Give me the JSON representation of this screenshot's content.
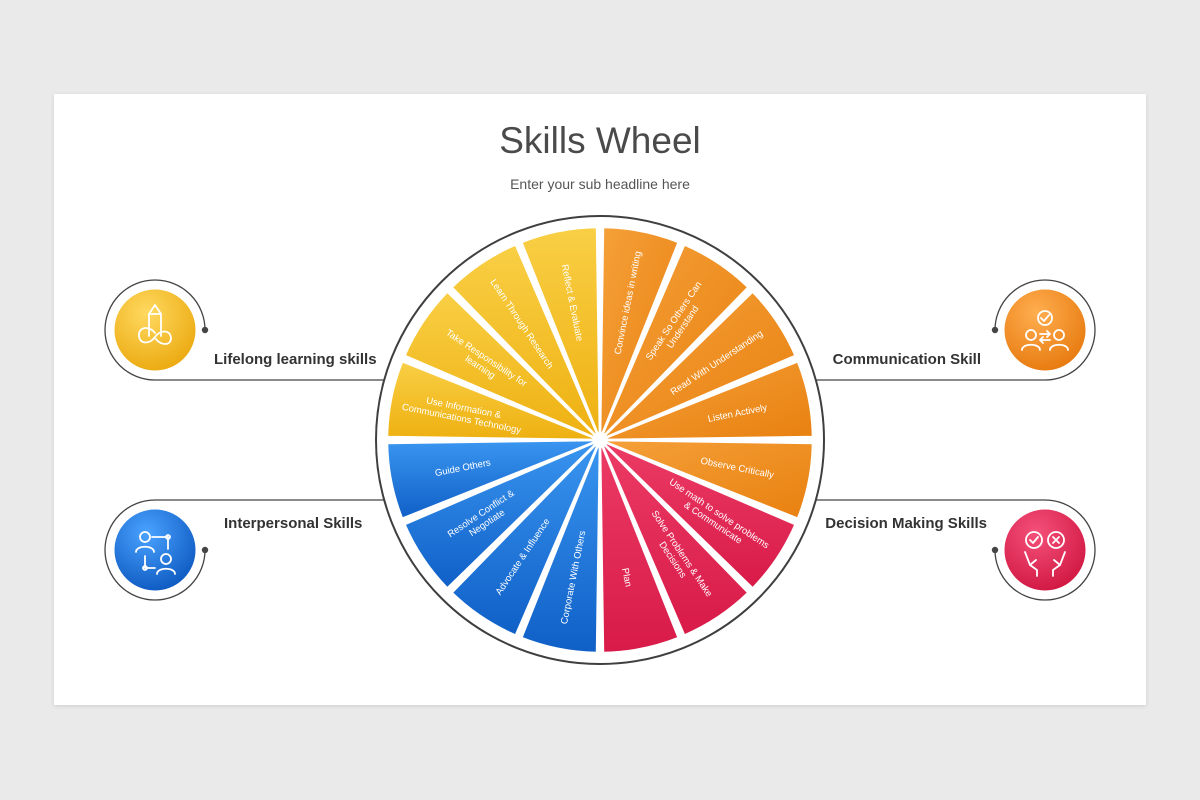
{
  "header": {
    "title": "Skills Wheel",
    "subtitle": "Enter your sub headline here"
  },
  "categories": [
    {
      "label": "Lifelong learning skills",
      "icon": "pencil-infinity-icon",
      "color": "#f2b418"
    },
    {
      "label": "Communication Skill",
      "icon": "people-exchange-icon",
      "color": "#f08a17"
    },
    {
      "label": "Interpersonal Skills",
      "icon": "people-network-icon",
      "color": "#1f73d6"
    },
    {
      "label": "Decision Making Skills",
      "icon": "hands-check-cross-icon",
      "color": "#e0254f"
    }
  ],
  "wheel": {
    "colors": {
      "yellow": "#f4bc22",
      "orange": "#ef8d1a",
      "red": "#e3295a",
      "blue": "#1e78dc"
    },
    "segments": [
      {
        "lines": [
          "Convince ideas in writing"
        ],
        "color": "orange"
      },
      {
        "lines": [
          "Speak So Others Can",
          "Understand"
        ],
        "color": "orange"
      },
      {
        "lines": [
          "Read With Understanding"
        ],
        "color": "orange"
      },
      {
        "lines": [
          "Listen Actively"
        ],
        "color": "orange"
      },
      {
        "lines": [
          "Observe Critically"
        ],
        "color": "orange"
      },
      {
        "lines": [
          "Use math to solve problems",
          "& Communicate"
        ],
        "color": "red"
      },
      {
        "lines": [
          "Solve Problems & Make",
          "Decisions"
        ],
        "color": "red"
      },
      {
        "lines": [
          "Plan"
        ],
        "color": "red"
      },
      {
        "lines": [
          "Corporate With Others"
        ],
        "color": "blue"
      },
      {
        "lines": [
          "Advocate & Influence"
        ],
        "color": "blue"
      },
      {
        "lines": [
          "Resolve Conflict &",
          "Negotiate"
        ],
        "color": "blue"
      },
      {
        "lines": [
          "Guide Others"
        ],
        "color": "blue"
      },
      {
        "lines": [
          "Use Information &",
          "Communications Technology"
        ],
        "color": "yellow"
      },
      {
        "lines": [
          "Take Responsibility for",
          "learning"
        ],
        "color": "yellow"
      },
      {
        "lines": [
          "Learn Through Research"
        ],
        "color": "yellow"
      },
      {
        "lines": [
          "Reflect & Evaluate"
        ],
        "color": "yellow"
      }
    ]
  }
}
